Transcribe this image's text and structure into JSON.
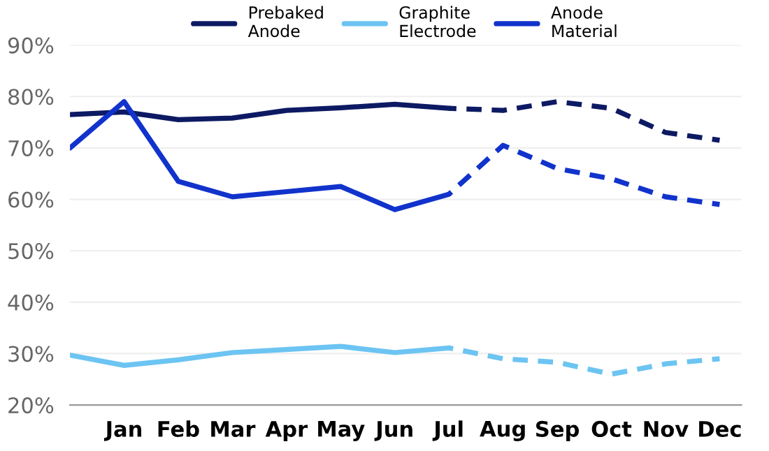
{
  "chart_data": {
    "type": "line",
    "categories": [
      null,
      "Jan",
      "Feb",
      "Mar",
      "Apr",
      "May",
      "Jun",
      "Jul",
      "Aug",
      "Sep",
      "Oct",
      "Nov",
      "Dec"
    ],
    "ylim": [
      20,
      90
    ],
    "yticks": [
      {
        "value": 20,
        "label": "20%"
      },
      {
        "value": 30,
        "label": "30%"
      },
      {
        "value": 40,
        "label": "40%"
      },
      {
        "value": 50,
        "label": "50%"
      },
      {
        "value": 60,
        "label": "60%"
      },
      {
        "value": 70,
        "label": "70%"
      },
      {
        "value": 80,
        "label": "80%"
      },
      {
        "value": 90,
        "label": "90%"
      }
    ],
    "grid": "y",
    "legend": "top",
    "marker": "none",
    "series": [
      {
        "name": "Prebaked\nAnode",
        "color": "#0d1a63",
        "line_style": "solid",
        "values": [
          76.5,
          77,
          75.5,
          75.8,
          77.3,
          77.8,
          78.5,
          77.7,
          null,
          null,
          null,
          null,
          null
        ]
      },
      {
        "name": "Graphite\nElectrode",
        "color": "#6cc4f2",
        "line_style": "solid",
        "values": [
          29.7,
          27.7,
          28.8,
          30.2,
          30.8,
          31.4,
          30.2,
          31.1,
          null,
          null,
          null,
          null,
          null
        ]
      },
      {
        "name": "Anode\nMaterial",
        "color": "#1133cc",
        "line_style": "solid",
        "values": [
          70,
          79,
          63.5,
          60.5,
          61.5,
          62.5,
          58,
          61,
          null,
          null,
          null,
          null,
          null
        ]
      },
      {
        "color": "#0d1a63",
        "line_style": "dashed",
        "values": [
          null,
          null,
          null,
          null,
          null,
          null,
          null,
          77.7,
          77.3,
          79,
          77.7,
          73,
          71.5
        ]
      },
      {
        "color": "#6cc4f2",
        "line_style": "dashed",
        "values": [
          null,
          null,
          null,
          null,
          null,
          null,
          null,
          31.1,
          29,
          28.3,
          26,
          28,
          29
        ]
      },
      {
        "color": "#1133cc",
        "line_style": "dashed",
        "values": [
          null,
          null,
          null,
          null,
          null,
          null,
          null,
          61,
          70.5,
          66,
          64,
          60.5,
          59
        ]
      }
    ]
  }
}
